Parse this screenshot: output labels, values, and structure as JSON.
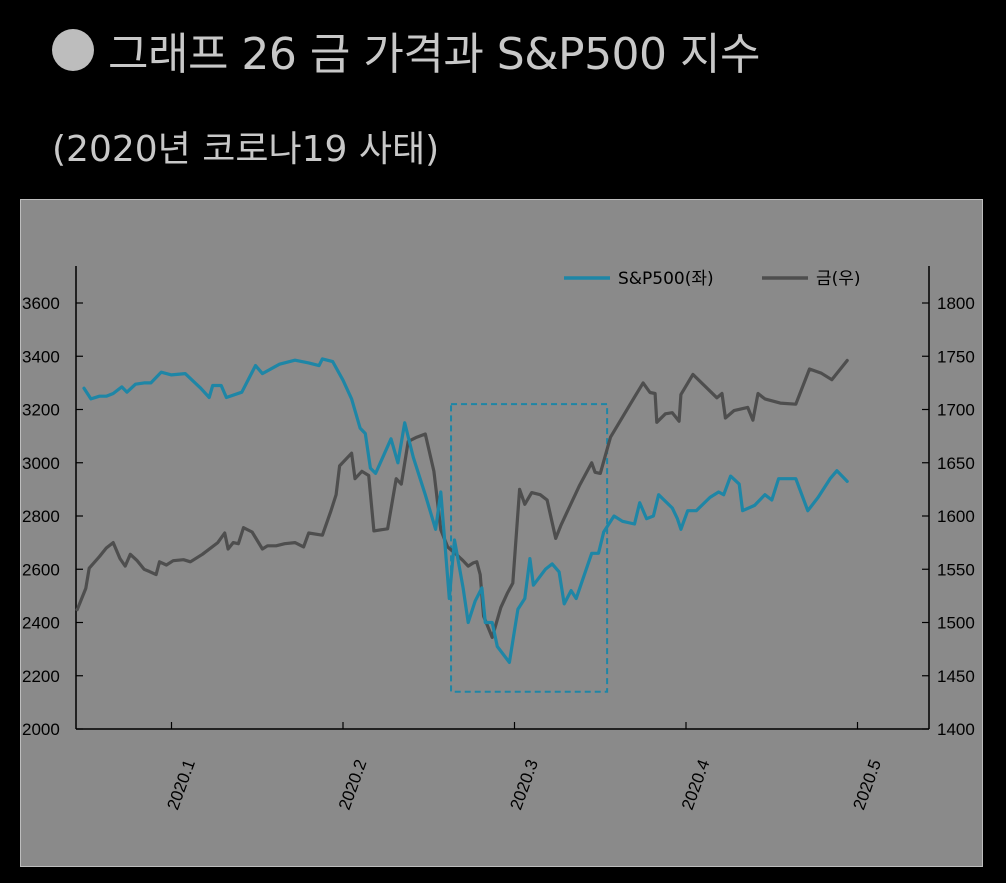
{
  "header": {
    "title": "그래프 26 금 가격과 S&P500 지수",
    "subtitle": "(2020년 코로나19 사태)"
  },
  "colors": {
    "sp500": "#1e86a6",
    "gold": "#4e4e4e",
    "highlight": "#1e86a6",
    "plot_bg": "#8a8a8a"
  },
  "chart_data": {
    "type": "line",
    "title": "그래프 26 금 가격과 S&P500 지수",
    "subtitle": "(2020년 코로나19 사태)",
    "xlabel": "",
    "x_ticks": [
      "2020.1",
      "2020.2",
      "2020.3",
      "2020.4",
      "2020.5"
    ],
    "x_tick_values": [
      1,
      2,
      3,
      4,
      5
    ],
    "xlim": [
      0.45,
      5.5
    ],
    "y_left": {
      "ylim": [
        2000,
        3700
      ],
      "ticks": [
        "2000",
        "2200",
        "2400",
        "2600",
        "2800",
        "3000",
        "3200",
        "3400",
        "3600"
      ]
    },
    "y_right": {
      "ylim": [
        1400,
        1825
      ],
      "ticks": [
        "1400",
        "1450",
        "1500",
        "1550",
        "1600",
        "1650",
        "1700",
        "1750",
        "1800"
      ]
    },
    "legend_position": "top-right",
    "legend": [
      "S&P500(좌)",
      "금(우)"
    ],
    "highlight_box": {
      "x_range": [
        2.63,
        3.54
      ],
      "y_range": [
        2140,
        3220
      ],
      "style": "dashed",
      "axis": "left"
    },
    "series": [
      {
        "name": "S&P500(좌)",
        "axis": "left",
        "points": [
          [
            0.49,
            3280
          ],
          [
            0.53,
            3240
          ],
          [
            0.58,
            3250
          ],
          [
            0.62,
            3250
          ],
          [
            0.66,
            3260
          ],
          [
            0.71,
            3285
          ],
          [
            0.74,
            3265
          ],
          [
            0.79,
            3295
          ],
          [
            0.84,
            3300
          ],
          [
            0.88,
            3300
          ],
          [
            0.94,
            3340
          ],
          [
            1.0,
            3330
          ],
          [
            1.08,
            3335
          ],
          [
            1.17,
            3280
          ],
          [
            1.22,
            3245
          ],
          [
            1.24,
            3290
          ],
          [
            1.29,
            3290
          ],
          [
            1.32,
            3245
          ],
          [
            1.41,
            3265
          ],
          [
            1.49,
            3365
          ],
          [
            1.53,
            3335
          ],
          [
            1.63,
            3370
          ],
          [
            1.72,
            3385
          ],
          [
            1.8,
            3375
          ],
          [
            1.86,
            3365
          ],
          [
            1.88,
            3390
          ],
          [
            1.94,
            3380
          ],
          [
            2.0,
            3310
          ],
          [
            2.05,
            3240
          ],
          [
            2.1,
            3130
          ],
          [
            2.13,
            3110
          ],
          [
            2.16,
            2980
          ],
          [
            2.19,
            2960
          ],
          [
            2.28,
            3090
          ],
          [
            2.32,
            3000
          ],
          [
            2.36,
            3150
          ],
          [
            2.41,
            3020
          ],
          [
            2.48,
            2880
          ],
          [
            2.54,
            2750
          ],
          [
            2.57,
            2890
          ],
          [
            2.62,
            2490
          ],
          [
            2.65,
            2710
          ],
          [
            2.7,
            2530
          ],
          [
            2.73,
            2400
          ],
          [
            2.77,
            2480
          ],
          [
            2.81,
            2530
          ],
          [
            2.83,
            2400
          ],
          [
            2.87,
            2400
          ],
          [
            2.9,
            2310
          ],
          [
            2.97,
            2250
          ],
          [
            3.02,
            2450
          ],
          [
            3.06,
            2490
          ],
          [
            3.09,
            2640
          ],
          [
            3.11,
            2540
          ],
          [
            3.18,
            2600
          ],
          [
            3.22,
            2620
          ],
          [
            3.26,
            2590
          ],
          [
            3.29,
            2470
          ],
          [
            3.33,
            2520
          ],
          [
            3.36,
            2490
          ],
          [
            3.45,
            2660
          ],
          [
            3.49,
            2660
          ],
          [
            3.52,
            2740
          ],
          [
            3.58,
            2800
          ],
          [
            3.63,
            2780
          ],
          [
            3.7,
            2770
          ],
          [
            3.73,
            2850
          ],
          [
            3.77,
            2790
          ],
          [
            3.81,
            2800
          ],
          [
            3.84,
            2880
          ],
          [
            3.92,
            2830
          ],
          [
            3.95,
            2790
          ],
          [
            3.97,
            2750
          ],
          [
            4.01,
            2820
          ],
          [
            4.06,
            2820
          ],
          [
            4.14,
            2870
          ],
          [
            4.19,
            2890
          ],
          [
            4.22,
            2880
          ],
          [
            4.26,
            2950
          ],
          [
            4.31,
            2920
          ],
          [
            4.33,
            2820
          ],
          [
            4.4,
            2840
          ],
          [
            4.46,
            2880
          ],
          [
            4.5,
            2860
          ],
          [
            4.54,
            2940
          ],
          [
            4.64,
            2940
          ],
          [
            4.71,
            2820
          ],
          [
            4.77,
            2870
          ],
          [
            4.84,
            2940
          ],
          [
            4.88,
            2970
          ],
          [
            4.94,
            2930
          ]
        ]
      },
      {
        "name": "금(우)",
        "axis": "right",
        "points": [
          [
            0.45,
            1512
          ],
          [
            0.5,
            1532
          ],
          [
            0.52,
            1551
          ],
          [
            0.58,
            1562
          ],
          [
            0.62,
            1570
          ],
          [
            0.66,
            1575
          ],
          [
            0.7,
            1560
          ],
          [
            0.73,
            1553
          ],
          [
            0.76,
            1564
          ],
          [
            0.8,
            1558
          ],
          [
            0.84,
            1550
          ],
          [
            0.87,
            1548
          ],
          [
            0.91,
            1545
          ],
          [
            0.93,
            1557
          ],
          [
            0.97,
            1554
          ],
          [
            1.01,
            1558
          ],
          [
            1.07,
            1559
          ],
          [
            1.11,
            1557
          ],
          [
            1.18,
            1564
          ],
          [
            1.27,
            1575
          ],
          [
            1.31,
            1584
          ],
          [
            1.33,
            1569
          ],
          [
            1.36,
            1575
          ],
          [
            1.39,
            1574
          ],
          [
            1.42,
            1589
          ],
          [
            1.47,
            1585
          ],
          [
            1.53,
            1569
          ],
          [
            1.56,
            1572
          ],
          [
            1.61,
            1572
          ],
          [
            1.66,
            1574
          ],
          [
            1.72,
            1575
          ],
          [
            1.77,
            1571
          ],
          [
            1.8,
            1584
          ],
          [
            1.88,
            1582
          ],
          [
            1.93,
            1605
          ],
          [
            1.96,
            1620
          ],
          [
            1.98,
            1647
          ],
          [
            2.05,
            1659
          ],
          [
            2.07,
            1635
          ],
          [
            2.11,
            1642
          ],
          [
            2.15,
            1638
          ],
          [
            2.18,
            1586
          ],
          [
            2.26,
            1588
          ],
          [
            2.31,
            1635
          ],
          [
            2.34,
            1630
          ],
          [
            2.38,
            1670
          ],
          [
            2.43,
            1674
          ],
          [
            2.48,
            1677
          ],
          [
            2.53,
            1642
          ],
          [
            2.57,
            1587
          ],
          [
            2.61,
            1571
          ],
          [
            2.66,
            1564
          ],
          [
            2.7,
            1558
          ],
          [
            2.73,
            1553
          ],
          [
            2.76,
            1556
          ],
          [
            2.78,
            1557
          ],
          [
            2.8,
            1545
          ],
          [
            2.82,
            1506
          ],
          [
            2.87,
            1486
          ],
          [
            2.92,
            1514
          ],
          [
            2.96,
            1528
          ],
          [
            2.99,
            1537
          ],
          [
            3.03,
            1625
          ],
          [
            3.06,
            1611
          ],
          [
            3.1,
            1622
          ],
          [
            3.15,
            1620
          ],
          [
            3.19,
            1615
          ],
          [
            3.24,
            1579
          ],
          [
            3.27,
            1591
          ],
          [
            3.31,
            1605
          ],
          [
            3.38,
            1629
          ],
          [
            3.45,
            1650
          ],
          [
            3.47,
            1641
          ],
          [
            3.5,
            1640
          ],
          [
            3.56,
            1674
          ],
          [
            3.66,
            1701
          ],
          [
            3.75,
            1725
          ],
          [
            3.79,
            1716
          ],
          [
            3.82,
            1715
          ],
          [
            3.83,
            1688
          ],
          [
            3.88,
            1696
          ],
          [
            3.92,
            1697
          ],
          [
            3.96,
            1689
          ],
          [
            3.97,
            1714
          ],
          [
            4.04,
            1733
          ],
          [
            4.18,
            1711
          ],
          [
            4.21,
            1715
          ],
          [
            4.23,
            1692
          ],
          [
            4.28,
            1699
          ],
          [
            4.36,
            1702
          ],
          [
            4.39,
            1690
          ],
          [
            4.42,
            1715
          ],
          [
            4.46,
            1710
          ],
          [
            4.55,
            1706
          ],
          [
            4.64,
            1705
          ],
          [
            4.72,
            1738
          ],
          [
            4.79,
            1734
          ],
          [
            4.85,
            1728
          ],
          [
            4.94,
            1746
          ]
        ]
      }
    ]
  }
}
